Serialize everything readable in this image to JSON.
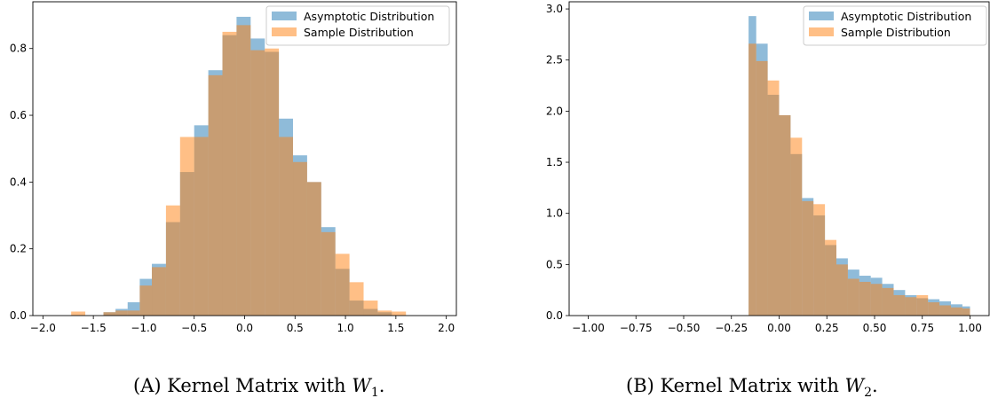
{
  "chart_data": [
    {
      "type": "bar",
      "title": "",
      "xlabel": "",
      "ylabel": "",
      "xlim": [
        -2.1,
        2.1
      ],
      "ylim": [
        0,
        0.94
      ],
      "xticks": [
        -2.0,
        -1.5,
        -1.0,
        -0.5,
        0.0,
        0.5,
        1.0,
        1.5,
        2.0
      ],
      "xtick_labels": [
        "−2.0",
        "−1.5",
        "−1.0",
        "−0.5",
        "0.0",
        "0.5",
        "1.0",
        "1.5",
        "2.0"
      ],
      "yticks": [
        0.0,
        0.2,
        0.4,
        0.6,
        0.8
      ],
      "ytick_labels": [
        "0.0",
        "0.2",
        "0.4",
        "0.6",
        "0.8"
      ],
      "legend_position": "top-right",
      "series": [
        {
          "name": "Asymptotic Distribution",
          "color": "#1f77b4",
          "bins": [
            [
              -1.4,
              -1.28,
              0.01
            ],
            [
              -1.28,
              -1.16,
              0.02
            ],
            [
              -1.16,
              -1.04,
              0.04
            ],
            [
              -1.04,
              -0.92,
              0.11
            ],
            [
              -0.92,
              -0.78,
              0.155
            ],
            [
              -0.78,
              -0.64,
              0.28
            ],
            [
              -0.64,
              -0.5,
              0.43
            ],
            [
              -0.5,
              -0.36,
              0.57
            ],
            [
              -0.36,
              -0.22,
              0.735
            ],
            [
              -0.22,
              -0.08,
              0.84
            ],
            [
              -0.08,
              0.06,
              0.895
            ],
            [
              0.06,
              0.2,
              0.83
            ],
            [
              0.2,
              0.34,
              0.79
            ],
            [
              0.34,
              0.48,
              0.59
            ],
            [
              0.48,
              0.62,
              0.48
            ],
            [
              0.62,
              0.76,
              0.4
            ],
            [
              0.76,
              0.9,
              0.265
            ],
            [
              0.9,
              1.04,
              0.14
            ],
            [
              1.04,
              1.18,
              0.045
            ],
            [
              1.18,
              1.32,
              0.02
            ],
            [
              1.32,
              1.46,
              0.01
            ]
          ]
        },
        {
          "name": "Sample Distribution",
          "color": "#ff7f0e",
          "bins": [
            [
              -1.72,
              -1.58,
              0.012
            ],
            [
              -1.4,
              -1.28,
              0.01
            ],
            [
              -1.28,
              -1.16,
              0.015
            ],
            [
              -1.16,
              -1.04,
              0.015
            ],
            [
              -1.04,
              -0.92,
              0.09
            ],
            [
              -0.92,
              -0.78,
              0.145
            ],
            [
              -0.78,
              -0.64,
              0.33
            ],
            [
              -0.64,
              -0.5,
              0.535
            ],
            [
              -0.5,
              -0.36,
              0.535
            ],
            [
              -0.36,
              -0.22,
              0.72
            ],
            [
              -0.22,
              -0.08,
              0.85
            ],
            [
              -0.08,
              0.06,
              0.87
            ],
            [
              0.06,
              0.2,
              0.795
            ],
            [
              0.2,
              0.34,
              0.8
            ],
            [
              0.34,
              0.48,
              0.535
            ],
            [
              0.48,
              0.62,
              0.46
            ],
            [
              0.62,
              0.76,
              0.4
            ],
            [
              0.76,
              0.9,
              0.25
            ],
            [
              0.9,
              1.04,
              0.185
            ],
            [
              1.04,
              1.18,
              0.1
            ],
            [
              1.18,
              1.32,
              0.045
            ],
            [
              1.32,
              1.46,
              0.015
            ],
            [
              1.46,
              1.6,
              0.012
            ]
          ]
        }
      ]
    },
    {
      "type": "bar",
      "title": "",
      "xlabel": "",
      "ylabel": "",
      "xlim": [
        -1.1,
        1.1
      ],
      "ylim": [
        0,
        3.07
      ],
      "xticks": [
        -1.0,
        -0.75,
        -0.5,
        -0.25,
        0.0,
        0.25,
        0.5,
        0.75,
        1.0
      ],
      "xtick_labels": [
        "−1.00",
        "−0.75",
        "−0.50",
        "−0.25",
        "0.00",
        "0.25",
        "0.50",
        "0.75",
        "1.00"
      ],
      "yticks": [
        0.0,
        0.5,
        1.0,
        1.5,
        2.0,
        2.5,
        3.0
      ],
      "ytick_labels": [
        "0.0",
        "0.5",
        "1.0",
        "1.5",
        "2.0",
        "2.5",
        "3.0"
      ],
      "legend_position": "top-right",
      "series": [
        {
          "name": "Asymptotic Distribution",
          "color": "#1f77b4",
          "bins": [
            [
              -0.16,
              -0.12,
              2.93
            ],
            [
              -0.12,
              -0.06,
              2.66
            ],
            [
              -0.06,
              0.0,
              2.16
            ],
            [
              0.0,
              0.06,
              1.96
            ],
            [
              0.06,
              0.12,
              1.58
            ],
            [
              0.12,
              0.18,
              1.15
            ],
            [
              0.18,
              0.24,
              0.98
            ],
            [
              0.24,
              0.3,
              0.69
            ],
            [
              0.3,
              0.36,
              0.56
            ],
            [
              0.36,
              0.42,
              0.45
            ],
            [
              0.42,
              0.48,
              0.39
            ],
            [
              0.48,
              0.54,
              0.37
            ],
            [
              0.54,
              0.6,
              0.31
            ],
            [
              0.6,
              0.66,
              0.25
            ],
            [
              0.66,
              0.72,
              0.2
            ],
            [
              0.72,
              0.78,
              0.17
            ],
            [
              0.78,
              0.84,
              0.16
            ],
            [
              0.84,
              0.9,
              0.14
            ],
            [
              0.9,
              0.96,
              0.11
            ],
            [
              0.96,
              1.0,
              0.09
            ]
          ]
        },
        {
          "name": "Sample Distribution",
          "color": "#ff7f0e",
          "bins": [
            [
              -0.16,
              -0.12,
              2.66
            ],
            [
              -0.12,
              -0.06,
              2.49
            ],
            [
              -0.06,
              0.0,
              2.3
            ],
            [
              0.0,
              0.06,
              1.96
            ],
            [
              0.06,
              0.12,
              1.74
            ],
            [
              0.12,
              0.18,
              1.12
            ],
            [
              0.18,
              0.24,
              1.09
            ],
            [
              0.24,
              0.3,
              0.74
            ],
            [
              0.3,
              0.36,
              0.5
            ],
            [
              0.36,
              0.42,
              0.36
            ],
            [
              0.42,
              0.48,
              0.33
            ],
            [
              0.48,
              0.54,
              0.31
            ],
            [
              0.54,
              0.6,
              0.27
            ],
            [
              0.6,
              0.66,
              0.2
            ],
            [
              0.66,
              0.72,
              0.18
            ],
            [
              0.72,
              0.78,
              0.2
            ],
            [
              0.78,
              0.84,
              0.13
            ],
            [
              0.84,
              0.9,
              0.1
            ],
            [
              0.9,
              0.96,
              0.08
            ],
            [
              0.96,
              1.0,
              0.07
            ]
          ]
        }
      ]
    }
  ],
  "captions": [
    {
      "letter": "(A)",
      "text": "Kernel Matrix with",
      "var": "W",
      "sub": "1",
      "end": "."
    },
    {
      "letter": "(B)",
      "text": "Kernel Matrix with",
      "var": "W",
      "sub": "2",
      "end": "."
    }
  ]
}
